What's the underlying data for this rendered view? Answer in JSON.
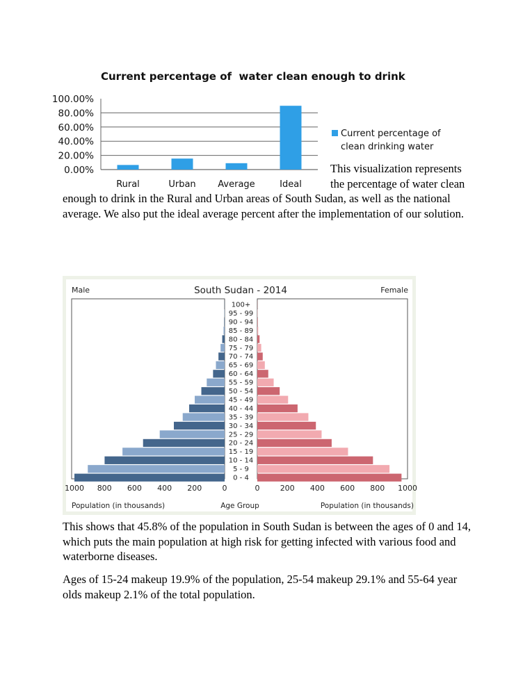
{
  "chart_data": [
    {
      "type": "bar",
      "title": "Current percentage of  water clean enough to drink",
      "categories": [
        "Rural",
        "Urban",
        "Average",
        "Ideal"
      ],
      "series": [
        {
          "name": "Current percentage of clean drinking water",
          "values": [
            6.5,
            15.5,
            9,
            90
          ]
        }
      ],
      "yticks": [
        "100.00%",
        "80.00%",
        "60.00%",
        "40.00%",
        "20.00%",
        "0.00%"
      ],
      "ylim": [
        0,
        100
      ],
      "grid": true,
      "legend_position": "right",
      "legend_lines": [
        "Current percentage of",
        "clean drinking water"
      ],
      "color": "#2f9fe6"
    },
    {
      "type": "bar",
      "title": "South Sudan - 2014",
      "left_label": "Male",
      "right_label": "Female",
      "center_header": "Age Group",
      "footer_left": "Population (in thousands)",
      "footer_right": "Population (in thousands)",
      "xlim": [
        0,
        1000
      ],
      "xticks_left": [
        "1000",
        "800",
        "600",
        "400",
        "200",
        "0"
      ],
      "xticks_right": [
        "0",
        "200",
        "400",
        "600",
        "800",
        "1000"
      ],
      "categories": [
        "100+",
        "95 - 99",
        "90 - 94",
        "85 - 89",
        "80 - 84",
        "75 - 79",
        "70 - 74",
        "65 - 69",
        "60 - 64",
        "55 - 59",
        "50 - 54",
        "45 - 49",
        "40 - 44",
        "35 - 39",
        "30 - 34",
        "25 - 29",
        "20 - 24",
        "15 - 19",
        "10 - 14",
        "5 - 9",
        "0 - 4"
      ],
      "series": [
        {
          "name": "Male",
          "values": [
            1,
            2,
            3,
            7,
            16,
            27,
            41,
            58,
            77,
            119,
            155,
            199,
            236,
            279,
            338,
            432,
            543,
            680,
            799,
            911,
            1000
          ]
        },
        {
          "name": "Female",
          "values": [
            1,
            2,
            3,
            6,
            15,
            26,
            36,
            50,
            73,
            109,
            149,
            205,
            268,
            340,
            390,
            428,
            495,
            604,
            770,
            880,
            960
          ]
        }
      ],
      "colors": {
        "male_dark": "#44668c",
        "male_light": "#8aa8cc",
        "female_dark": "#cc6670",
        "female_light": "#f2aab0"
      }
    }
  ],
  "paragraphs": {
    "p1": "This visualization represents the percentage of water clean enough to drink in the Rural and Urban areas of South Sudan, as well as the national average. We also put the ideal average percent after the implementation of our solution.",
    "p2": "This shows that 45.8% of the population in South Sudan is between the ages of 0 and 14, which puts the main population at high risk for getting infected with various food and waterborne diseases.",
    "p3": "Ages of 15-24 makeup 19.9% of the population, 25-54 makeup 29.1% and 55-64 year olds makeup 2.1% of the total population."
  }
}
